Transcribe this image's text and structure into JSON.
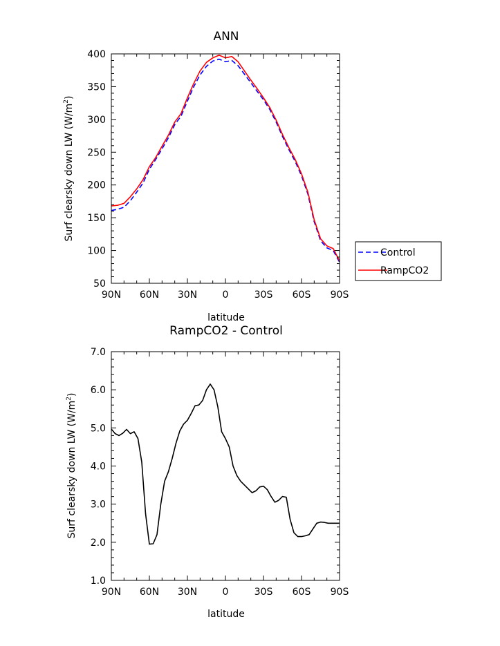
{
  "chart_data": [
    {
      "type": "line",
      "title": "ANN",
      "xlabel": "latitude",
      "ylabel": "Surf clearsky down LW (W/m²)",
      "ylabel_main": "Surf clearsky down LW (W/m",
      "ylabel_sup": "2",
      "ylabel_close": ")",
      "xlim": [
        90,
        -90
      ],
      "ylim": [
        50,
        400
      ],
      "xticks": [
        90,
        60,
        30,
        0,
        -30,
        -60,
        -90
      ],
      "xtick_labels": [
        "90N",
        "60N",
        "30N",
        "0",
        "30S",
        "60S",
        "90S"
      ],
      "yticks": [
        50,
        100,
        150,
        200,
        250,
        300,
        350,
        400
      ],
      "ytick_labels": [
        "50",
        "100",
        "150",
        "200",
        "250",
        "300",
        "350",
        "400"
      ],
      "legend": {
        "placement": "right",
        "entries": [
          "Control",
          "RampCO2"
        ]
      },
      "x": [
        90,
        85,
        80,
        75,
        70,
        65,
        60,
        55,
        50,
        45,
        40,
        35,
        30,
        25,
        20,
        15,
        10,
        5,
        0,
        -5,
        -10,
        -15,
        -20,
        -25,
        -30,
        -35,
        -40,
        -45,
        -50,
        -55,
        -60,
        -65,
        -70,
        -75,
        -80,
        -85,
        -90
      ],
      "series": [
        {
          "name": "Control",
          "color": "#0000ff",
          "style": "dashed",
          "values": [
            161,
            163,
            166,
            176,
            189,
            203,
            224,
            239,
            255,
            272,
            292,
            305,
            328,
            350,
            368,
            381,
            389,
            392,
            388,
            390,
            382,
            369,
            356,
            343,
            330,
            315,
            296,
            274,
            254,
            236,
            214,
            186,
            144,
            115,
            104,
            100,
            82
          ]
        },
        {
          "name": "RampCO2",
          "color": "#ff0000",
          "style": "solid",
          "values": [
            168,
            169,
            172,
            182,
            194,
            208,
            228,
            242,
            259,
            276,
            296,
            309,
            333,
            355,
            374,
            387,
            394,
            398,
            394,
            396,
            388,
            374,
            360,
            347,
            333,
            318,
            299,
            277,
            257,
            239,
            217,
            189,
            147,
            118,
            107,
            103,
            84
          ]
        }
      ]
    },
    {
      "type": "line",
      "title": "RampCO2 - Control",
      "xlabel": "latitude",
      "ylabel": "Surf clearsky down LW (W/m²)",
      "ylabel_main": "Surf clearsky down LW (W/m",
      "ylabel_sup": "2",
      "ylabel_close": ")",
      "xlim": [
        90,
        -90
      ],
      "ylim": [
        1,
        7
      ],
      "xticks": [
        90,
        60,
        30,
        0,
        -30,
        -60,
        -90
      ],
      "xtick_labels": [
        "90N",
        "60N",
        "30N",
        "0",
        "30S",
        "60S",
        "90S"
      ],
      "yticks": [
        1,
        2,
        3,
        4,
        5,
        6,
        7
      ],
      "ytick_labels": [
        "1.0",
        "2.0",
        "3.0",
        "4.0",
        "5.0",
        "6.0",
        "7.0"
      ],
      "x": [
        90,
        87,
        84,
        81,
        78,
        75,
        72,
        69,
        66,
        63,
        60,
        57,
        54,
        51,
        48,
        45,
        42,
        39,
        36,
        33,
        30,
        27,
        24,
        21,
        18,
        15,
        12,
        9,
        6,
        3,
        0,
        -3,
        -6,
        -9,
        -12,
        -15,
        -18,
        -21,
        -24,
        -27,
        -30,
        -33,
        -36,
        -39,
        -42,
        -45,
        -48,
        -51,
        -54,
        -57,
        -60,
        -63,
        -66,
        -69,
        -72,
        -75,
        -78,
        -81,
        -84,
        -87,
        -90
      ],
      "series": [
        {
          "name": "",
          "color": "#000000",
          "style": "solid",
          "values": [
            4.97,
            4.85,
            4.8,
            4.86,
            4.96,
            4.85,
            4.9,
            4.72,
            4.1,
            2.75,
            1.95,
            1.96,
            2.2,
            3.0,
            3.6,
            3.85,
            4.2,
            4.6,
            4.92,
            5.1,
            5.2,
            5.38,
            5.58,
            5.6,
            5.72,
            6.0,
            6.15,
            6.0,
            5.55,
            4.9,
            4.72,
            4.5,
            4.0,
            3.75,
            3.6,
            3.5,
            3.4,
            3.3,
            3.35,
            3.45,
            3.47,
            3.38,
            3.2,
            3.05,
            3.1,
            3.2,
            3.18,
            2.6,
            2.25,
            2.15,
            2.15,
            2.17,
            2.2,
            2.35,
            2.5,
            2.53,
            2.52,
            2.5,
            2.5,
            2.5,
            2.5
          ]
        }
      ]
    }
  ]
}
